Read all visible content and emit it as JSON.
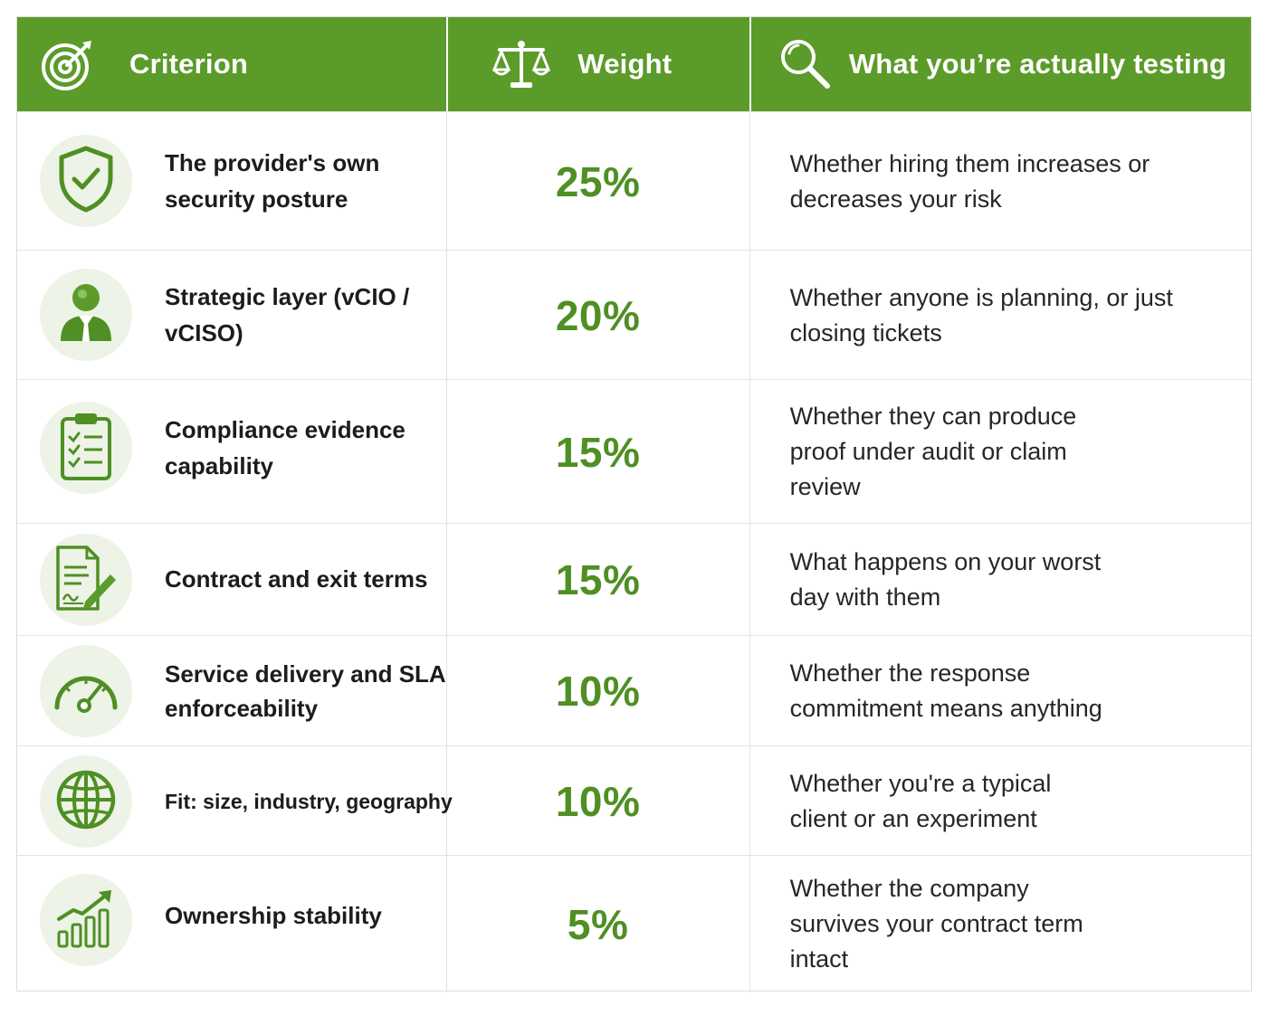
{
  "header": {
    "criterion": "Criterion",
    "weight": "Weight",
    "testing": "What you’re actually testing"
  },
  "icons": {
    "header": [
      "target-icon",
      "scale-icon",
      "magnifier-icon"
    ],
    "rows": [
      "shield-check-icon",
      "person-icon",
      "clipboard-checklist-icon",
      "contract-pen-icon",
      "speedometer-icon",
      "globe-icon",
      "growth-chart-icon"
    ]
  },
  "colors": {
    "accent": "#5b9b2a",
    "weight_text": "#4f8f24",
    "icon_circle": "#edf3e7"
  },
  "rows": [
    {
      "criterion": "The provider's own security posture",
      "weight": "25%",
      "testing": "Whether hiring them increases or decreases your risk"
    },
    {
      "criterion": "Strategic layer (vCIO / vCISO)",
      "weight": "20%",
      "testing": "Whether anyone is planning, or just closing tickets"
    },
    {
      "criterion": "Compliance evidence capability",
      "weight": "15%",
      "testing": "Whether they can produce proof under audit or claim review"
    },
    {
      "criterion": "Contract and exit terms",
      "weight": "15%",
      "testing": "What happens on your worst day with them"
    },
    {
      "criterion": "Service delivery and SLA enforceability",
      "weight": "10%",
      "testing": "Whether the response commitment means anything"
    },
    {
      "criterion": "Fit: size, industry, geography",
      "weight": "10%",
      "testing": "Whether you're a typical client or an experiment"
    },
    {
      "criterion": "Ownership stability",
      "weight": "5%",
      "testing": "Whether the company survives your contract term intact"
    }
  ]
}
